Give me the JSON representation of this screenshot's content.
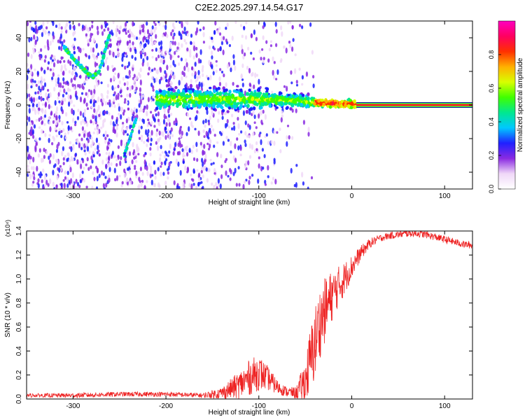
{
  "title": "C2E2.2025.297.14.54.G17",
  "colors": {
    "snr_line": "#ee2222",
    "band_core": "#ff2020",
    "background": "#ffffff",
    "colorbar_stops": [
      "#ffffff",
      "#f0d8f8",
      "#8a2be2",
      "#2020ff",
      "#00c8ff",
      "#00e890",
      "#40ff00",
      "#d8ff00",
      "#ffb000",
      "#ff3000",
      "#ff0060",
      "#ff00c0"
    ]
  },
  "chart_data": [
    {
      "type": "heatmap",
      "name": "spectrogram",
      "xlabel": "Height of straight line (km)",
      "ylabel": "Frequency (Hz)",
      "xlim": [
        -350,
        130
      ],
      "ylim": [
        -50,
        50
      ],
      "xticks": [
        -300,
        -200,
        -100,
        0,
        100
      ],
      "yticks": [
        -40,
        -20,
        0,
        20,
        40
      ],
      "xtick_labels": [
        "-300",
        "-200",
        "-100",
        "0",
        "100"
      ],
      "ytick_labels": [
        "-40",
        "-20",
        "0",
        "20",
        "40"
      ],
      "colorbar": {
        "label": "Normalized spectral amplitude",
        "range": [
          0,
          1
        ],
        "ticks": [
          0.0,
          0.2,
          0.4,
          0.6,
          0.8
        ],
        "tick_labels": [
          "0.0",
          "0.2",
          "0.4",
          "0.6",
          "0.8"
        ]
      },
      "features": {
        "main_band": {
          "x_start": -210,
          "x_end": 5,
          "freq": [
            3.5,
            3,
            1.5,
            0.5
          ],
          "x": [
            -150,
            -80,
            -40,
            0
          ]
        },
        "steady_line": {
          "x_start": 5,
          "x_end": 130,
          "freq": 0,
          "amplitude": 1.0
        },
        "curved_trace": {
          "x": [
            -310,
            -300,
            -290,
            -283,
            -278,
            -272,
            -268,
            -264,
            -261
          ],
          "freq": [
            35,
            28,
            22,
            18,
            17,
            20,
            27,
            36,
            42
          ]
        },
        "diagonal_trace": {
          "x": [
            -245,
            -240,
            -236,
            -232
          ],
          "freq": [
            -30,
            -22,
            -15,
            -8
          ]
        }
      }
    },
    {
      "type": "line",
      "name": "snr",
      "xlabel": "Height of straight line (km)",
      "ylabel": "SNR (10 * v/v)",
      "scale_label": "(x10⁴)",
      "xlim": [
        -350,
        130
      ],
      "ylim": [
        0,
        1.4
      ],
      "xticks": [
        -300,
        -200,
        -100,
        0,
        100
      ],
      "yticks": [
        0.0,
        0.2,
        0.4,
        0.6,
        0.8,
        1.0,
        1.2,
        1.4
      ],
      "xtick_labels": [
        "-300",
        "-200",
        "-100",
        "0",
        "100"
      ],
      "ytick_labels": [
        "0.0",
        "0.2",
        "0.4",
        "0.6",
        "0.8",
        "1.0",
        "1.2",
        "1.4"
      ],
      "envelope": {
        "x": [
          -350,
          -300,
          -250,
          -200,
          -160,
          -140,
          -120,
          -110,
          -100,
          -90,
          -80,
          -70,
          -60,
          -50,
          -45,
          -40,
          -35,
          -30,
          -25,
          -20,
          -10,
          0,
          10,
          20,
          30,
          40,
          50,
          60,
          70,
          80,
          90,
          100,
          110,
          120,
          130
        ],
        "snr": [
          0.03,
          0.03,
          0.04,
          0.04,
          0.03,
          0.05,
          0.12,
          0.18,
          0.22,
          0.17,
          0.1,
          0.06,
          0.05,
          0.15,
          0.3,
          0.45,
          0.62,
          0.72,
          0.8,
          0.88,
          0.98,
          1.1,
          1.22,
          1.3,
          1.34,
          1.36,
          1.37,
          1.38,
          1.38,
          1.37,
          1.35,
          1.33,
          1.31,
          1.29,
          1.28
        ],
        "noise": [
          0.015,
          0.02,
          0.02,
          0.02,
          0.02,
          0.05,
          0.12,
          0.15,
          0.15,
          0.1,
          0.06,
          0.04,
          0.05,
          0.18,
          0.28,
          0.32,
          0.3,
          0.28,
          0.25,
          0.2,
          0.15,
          0.1,
          0.06,
          0.04,
          0.03,
          0.03,
          0.03,
          0.03,
          0.03,
          0.03,
          0.03,
          0.03,
          0.03,
          0.03,
          0.03
        ]
      }
    }
  ]
}
